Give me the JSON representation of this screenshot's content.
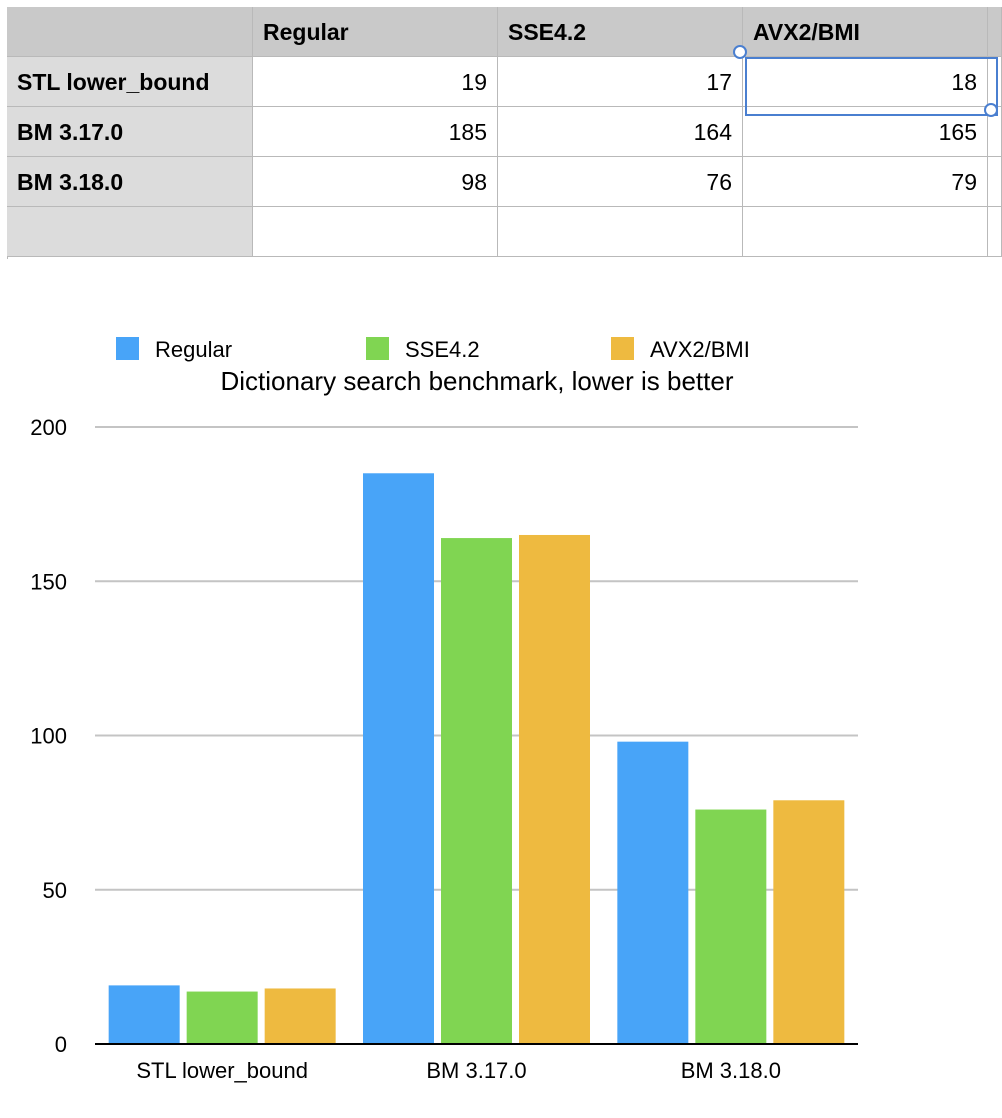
{
  "table": {
    "columns": [
      "Regular",
      "SSE4.2",
      "AVX2/BMI"
    ],
    "rows": [
      {
        "label": "STL lower_bound",
        "values": [
          "19",
          "17",
          "18"
        ]
      },
      {
        "label": "BM 3.17.0",
        "values": [
          "185",
          "164",
          "165"
        ]
      },
      {
        "label": "BM 3.18.0",
        "values": [
          "98",
          "76",
          "79"
        ]
      },
      {
        "label": "",
        "values": [
          "",
          "",
          ""
        ]
      }
    ],
    "selected_cell": "AVX2/BMI, STL lower_bound"
  },
  "chart_data": {
    "type": "bar",
    "title": "Dictionary search benchmark, lower is better",
    "categories": [
      "STL lower_bound",
      "BM 3.17.0",
      "BM 3.18.0"
    ],
    "series": [
      {
        "name": "Regular",
        "color": "#48a4f8",
        "values": [
          19,
          185,
          98
        ]
      },
      {
        "name": "SSE4.2",
        "color": "#80d552",
        "values": [
          17,
          164,
          76
        ]
      },
      {
        "name": "AVX2/BMI",
        "color": "#eeba40",
        "values": [
          18,
          165,
          79
        ]
      }
    ],
    "ylim": [
      0,
      200
    ],
    "yticks": [
      0,
      50,
      100,
      150,
      200
    ],
    "grid": true,
    "legend_position": "top",
    "xlabel": "",
    "ylabel": ""
  }
}
